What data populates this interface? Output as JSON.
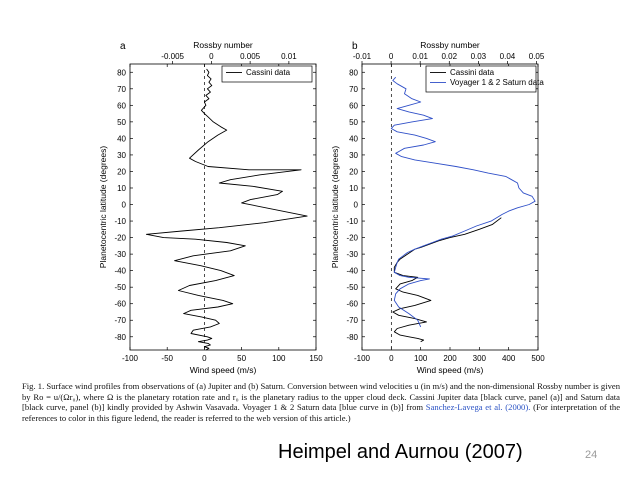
{
  "chart_data": [
    {
      "type": "line",
      "panel_label": "a",
      "top_axis_label": "Rossby number",
      "top_ticks": [
        "-0.005",
        "0",
        "0.005",
        "0.01"
      ],
      "top_tick_values": [
        -0.005,
        0,
        0.005,
        0.01
      ],
      "top_range": [
        -0.0105,
        0.0135
      ],
      "xlabel": "Wind speed (m/s)",
      "ylabel": "Planetocentric latitude (degrees)",
      "xlim": [
        -100,
        150
      ],
      "ylim": [
        -88,
        85
      ],
      "x_ticks": [
        -100,
        -50,
        0,
        50,
        100,
        150
      ],
      "y_ticks": [
        -80,
        -70,
        -60,
        -50,
        -40,
        -30,
        -20,
        -10,
        0,
        10,
        20,
        30,
        40,
        50,
        60,
        70,
        80
      ],
      "zero_line": "dashed",
      "legend": {
        "position": "top-right",
        "entries": [
          "Cassini data"
        ]
      },
      "series": [
        {
          "name": "Cassini data",
          "color": "#000000",
          "x": [
            3,
            6,
            4,
            9,
            6,
            10,
            4,
            8,
            2,
            6,
            0,
            2,
            -4,
            0,
            5,
            12,
            22,
            30,
            18,
            5,
            -8,
            -20,
            -12,
            5,
            60,
            130,
            75,
            35,
            20,
            65,
            105,
            98,
            62,
            50,
            138,
            80,
            20,
            -30,
            -78,
            -55,
            -12,
            30,
            55,
            35,
            -15,
            -40,
            -5,
            22,
            40,
            15,
            -20,
            -35,
            -8,
            25,
            38,
            18,
            -18,
            -28,
            -4,
            15,
            20,
            8,
            -15,
            -18,
            4,
            10,
            4,
            -8,
            5,
            8,
            0,
            6,
            2
          ],
          "y": [
            82,
            80,
            78,
            76,
            74,
            72,
            70,
            68,
            66,
            64,
            62,
            60,
            57,
            55,
            53,
            50,
            47,
            45,
            42,
            38,
            33,
            28,
            26,
            23,
            21,
            21,
            18,
            15,
            13,
            11,
            8,
            6,
            3,
            1,
            -7,
            -11,
            -14,
            -16,
            -18,
            -20,
            -21,
            -23,
            -25,
            -28,
            -31,
            -34,
            -37,
            -40,
            -43,
            -46,
            -49,
            -52,
            -55,
            -58,
            -60,
            -62,
            -64,
            -66,
            -68,
            -70,
            -72,
            -74,
            -76,
            -78,
            -80,
            -81,
            -82,
            -83,
            -84,
            -85,
            -86,
            -87,
            -88
          ]
        }
      ]
    },
    {
      "type": "line",
      "panel_label": "b",
      "top_axis_label": "Rossby number",
      "top_ticks": [
        "-0.01",
        "0",
        "0.01",
        "0.02",
        "0.03",
        "0.04",
        "0.05"
      ],
      "top_tick_values": [
        -0.01,
        0,
        0.01,
        0.02,
        0.03,
        0.04,
        0.05
      ],
      "top_range": [
        -0.01,
        0.0505
      ],
      "xlabel": "Wind speed (m/s)",
      "ylabel": "Planetocentric latitude (degrees)",
      "xlim": [
        -100,
        500
      ],
      "ylim": [
        -88,
        85
      ],
      "x_ticks": [
        -100,
        0,
        100,
        200,
        300,
        400,
        500
      ],
      "y_ticks": [
        -80,
        -70,
        -60,
        -50,
        -40,
        -30,
        -20,
        -10,
        0,
        10,
        20,
        30,
        40,
        50,
        60,
        70,
        80
      ],
      "zero_line": "dashed",
      "legend": {
        "position": "top-right",
        "entries": [
          "Cassini data",
          "Voyager 1 & 2 Saturn data"
        ]
      },
      "series": [
        {
          "name": "Cassini data",
          "color": "#000000",
          "x": [
            375,
            345,
            300,
            250,
            200,
            160,
            130,
            100,
            80,
            55,
            30,
            20,
            10,
            10,
            40,
            90,
            70,
            30,
            15,
            40,
            90,
            135,
            80,
            30,
            5,
            25,
            80,
            120,
            60,
            20,
            10,
            30,
            60,
            90,
            110,
            100
          ],
          "y": [
            -8,
            -12,
            -15,
            -18,
            -20,
            -22,
            -24,
            -26,
            -27,
            -30,
            -33,
            -35,
            -38,
            -41,
            -43,
            -44,
            -46,
            -48,
            -51,
            -53,
            -55,
            -58,
            -61,
            -63,
            -65,
            -67,
            -69,
            -71,
            -73,
            -75,
            -77,
            -79,
            -80,
            -81,
            -82,
            -83
          ]
        },
        {
          "name": "Voyager 1 & 2 Saturn data",
          "color": "#3050c8",
          "x": [
            15,
            5,
            20,
            50,
            45,
            70,
            100,
            60,
            20,
            60,
            110,
            140,
            70,
            10,
            0,
            20,
            80,
            120,
            150,
            110,
            45,
            25,
            15,
            35,
            80,
            150,
            220,
            280,
            330,
            390,
            410,
            430,
            435,
            450,
            480,
            490,
            470,
            430,
            400,
            378,
            340,
            290,
            250,
            210,
            170,
            140,
            110,
            80,
            55,
            40,
            25,
            20,
            15,
            10,
            30,
            60,
            130,
            100,
            60,
            30,
            15,
            10,
            25,
            60,
            90,
            100
          ],
          "y": [
            77,
            75,
            73,
            70,
            67,
            64,
            62,
            60,
            58,
            56,
            54,
            52,
            50,
            48,
            46,
            44,
            42,
            40,
            38,
            36,
            34,
            32,
            31,
            29,
            27,
            25,
            23,
            21,
            19,
            17,
            15,
            13,
            10,
            7,
            5,
            2,
            0,
            -2,
            -4,
            -6,
            -10,
            -13,
            -16,
            -19,
            -21,
            -23,
            -25,
            -27,
            -29,
            -31,
            -33,
            -35,
            -38,
            -41,
            -43,
            -44,
            -45,
            -46,
            -48,
            -51,
            -54,
            -58,
            -62,
            -66,
            -70,
            -74
          ]
        }
      ]
    }
  ],
  "caption": {
    "main": "Fig. 1. Surface wind profiles from observations of (a) Jupiter and (b) Saturn. Conversion between wind velocities u (in m/s) and the non-dimensional Rossby number is given by Ro = u/(Ωr₀), where Ω is the planetary rotation rate and r₀ is the planetary radius to the upper cloud deck. Cassini Jupiter data [black curve, panel (a)] and Saturn data [black curve, panel (b)] kindly provided by Ashwin Vasavada. Voyager 1 & 2 Saturn data [blue curve in (b)] from",
    "ref": "Sanchez-Lavega et al. (2000).",
    "end": "(For interpretation of the references to color in this figure ledend, the reader is referred to the web version of this article.)"
  },
  "credit": "Heimpel and Aurnou (2007)",
  "slide_number": "24"
}
